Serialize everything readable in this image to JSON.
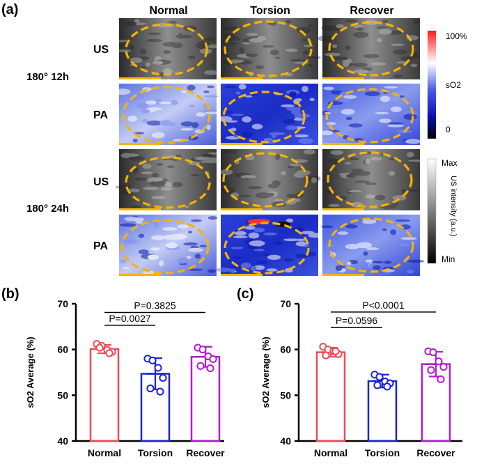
{
  "figure": {
    "panel_a_label": "(a)",
    "panel_b_label": "(b)",
    "panel_c_label": "(c)",
    "columns": [
      "Normal",
      "Torsion",
      "Recover"
    ],
    "rows": [
      {
        "group": "180° 12h",
        "modes": [
          "US",
          "PA"
        ]
      },
      {
        "group": "180° 24h",
        "modes": [
          "US",
          "PA"
        ]
      }
    ],
    "colorbar_so2": {
      "top": "100%",
      "label": "sO2",
      "bottom": "0"
    },
    "colorbar_us": {
      "top": "Max",
      "label": "US intensity (a.u.)",
      "bottom": "Min"
    }
  },
  "colors": {
    "normal": "#f04a5a",
    "torsion": "#1a24d6",
    "recover": "#b21bd0",
    "ellipse": "#f5b300",
    "scalebar": "#f5b300"
  },
  "chart_data": [
    {
      "type": "bar",
      "panel": "(b)",
      "title": "",
      "ylabel": "sO2 Average (%)",
      "xlabel": "",
      "categories": [
        "Normal",
        "Torsion",
        "Recover"
      ],
      "values": [
        60.1,
        54.7,
        58.4
      ],
      "sd": [
        0.9,
        3.4,
        2.2
      ],
      "points": [
        [
          61.2,
          60.8,
          59.9,
          59.5,
          60.4,
          59.2
        ],
        [
          58.0,
          57.6,
          56.0,
          53.8,
          51.5,
          50.8
        ],
        [
          60.4,
          60.0,
          58.5,
          57.9,
          56.4,
          55.9
        ]
      ],
      "ylim": [
        40,
        70
      ],
      "yticks": [
        40,
        50,
        60,
        70
      ],
      "annotations": [
        {
          "from": "Normal",
          "to": "Torsion",
          "y": 65.3,
          "text": "P=0.0027"
        },
        {
          "from": "Normal",
          "to": "Recover",
          "y": 68.1,
          "text": "P=0.3825"
        }
      ]
    },
    {
      "type": "bar",
      "panel": "(c)",
      "title": "",
      "ylabel": "sO2 Average (%)",
      "xlabel": "",
      "categories": [
        "Normal",
        "Torsion",
        "Recover"
      ],
      "values": [
        59.4,
        53.1,
        56.8
      ],
      "sd": [
        1.0,
        1.4,
        2.7
      ],
      "points": [
        [
          60.6,
          60.0,
          59.6,
          59.0,
          58.7,
          59.6
        ],
        [
          54.5,
          54.0,
          53.0,
          52.6,
          52.2,
          51.9
        ],
        [
          59.6,
          59.4,
          57.4,
          56.2,
          55.5,
          53.5
        ]
      ],
      "ylim": [
        40,
        70
      ],
      "yticks": [
        40,
        50,
        60,
        70
      ],
      "annotations": [
        {
          "from": "Normal",
          "to": "Torsion",
          "y": 64.8,
          "text": "P=0.0596"
        },
        {
          "from": "Normal",
          "to": "Recover",
          "y": 68.2,
          "text": "P<0.0001"
        }
      ]
    }
  ]
}
